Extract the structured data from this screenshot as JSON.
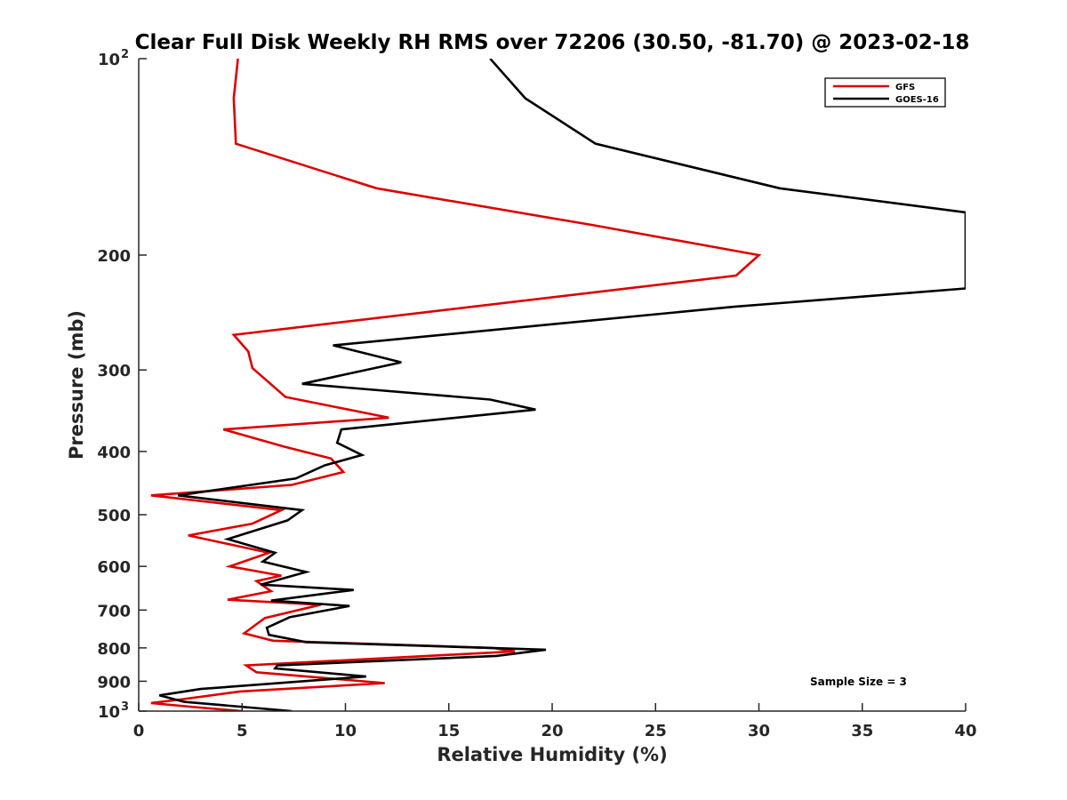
{
  "chart_data": {
    "type": "line",
    "title": "Clear Full Disk Weekly RH RMS over 72206 (30.50, -81.70) @ 2023-02-18",
    "xlabel": "Relative Humidity (%)",
    "ylabel": "Pressure (mb)",
    "xlim": [
      0,
      40
    ],
    "ylim": [
      100,
      1000
    ],
    "y_scale": "log",
    "y_reversed": true,
    "x_ticks": [
      "0",
      "5",
      "10",
      "15",
      "20",
      "25",
      "30",
      "35",
      "40"
    ],
    "y_ticks": [
      {
        "value": 100,
        "base": "10",
        "exp": "2"
      },
      {
        "value": 200,
        "label": "200"
      },
      {
        "value": 300,
        "label": "300"
      },
      {
        "value": 400,
        "label": "400"
      },
      {
        "value": 500,
        "label": "500"
      },
      {
        "value": 600,
        "label": "600"
      },
      {
        "value": 700,
        "label": "700"
      },
      {
        "value": 800,
        "label": "800"
      },
      {
        "value": 900,
        "label": "900"
      },
      {
        "value": 1000,
        "base": "10",
        "exp": "3"
      }
    ],
    "grid": false,
    "legend_position": "top-right",
    "series": [
      {
        "name": "GFS",
        "color": "#dd0000",
        "points": [
          [
            4.8,
            100
          ],
          [
            4.6,
            115
          ],
          [
            4.7,
            135
          ],
          [
            11.5,
            158
          ],
          [
            22.0,
            180
          ],
          [
            30.0,
            200
          ],
          [
            28.9,
            215
          ],
          [
            4.6,
            265
          ],
          [
            5.3,
            281
          ],
          [
            5.5,
            298
          ],
          [
            7.1,
            330
          ],
          [
            12.1,
            355
          ],
          [
            4.1,
            370
          ],
          [
            7.0,
            393
          ],
          [
            9.3,
            410
          ],
          [
            9.9,
            430
          ],
          [
            7.4,
            450
          ],
          [
            0.6,
            467
          ],
          [
            6.9,
            492
          ],
          [
            5.5,
            516
          ],
          [
            2.4,
            538
          ],
          [
            6.3,
            572
          ],
          [
            4.4,
            600
          ],
          [
            6.9,
            620
          ],
          [
            5.7,
            632
          ],
          [
            6.4,
            655
          ],
          [
            4.3,
            675
          ],
          [
            8.8,
            687
          ],
          [
            6.1,
            720
          ],
          [
            5.1,
            760
          ],
          [
            6.5,
            780
          ],
          [
            17.1,
            800
          ],
          [
            18.2,
            810
          ],
          [
            5.2,
            851
          ],
          [
            5.7,
            872
          ],
          [
            11.9,
            906
          ],
          [
            4.9,
            933
          ],
          [
            2.0,
            960
          ],
          [
            0.6,
            972
          ],
          [
            2.7,
            986
          ],
          [
            5.0,
            1000
          ]
        ]
      },
      {
        "name": "GOES-16",
        "color": "#000000",
        "points": [
          [
            17.0,
            100
          ],
          [
            18.7,
            115
          ],
          [
            22.1,
            135
          ],
          [
            31.0,
            158
          ],
          [
            40.0,
            172
          ],
          [
            40.0,
            225
          ],
          [
            28.8,
            240
          ],
          [
            9.4,
            275
          ],
          [
            12.7,
            292
          ],
          [
            7.9,
            315
          ],
          [
            17.0,
            333
          ],
          [
            19.2,
            345
          ],
          [
            9.8,
            370
          ],
          [
            9.6,
            388
          ],
          [
            10.8,
            405
          ],
          [
            9.0,
            420
          ],
          [
            7.6,
            440
          ],
          [
            1.9,
            467
          ],
          [
            7.9,
            492
          ],
          [
            7.2,
            510
          ],
          [
            4.3,
            545
          ],
          [
            6.6,
            572
          ],
          [
            6.0,
            590
          ],
          [
            8.1,
            612
          ],
          [
            5.9,
            640
          ],
          [
            10.4,
            652
          ],
          [
            6.4,
            677
          ],
          [
            10.2,
            690
          ],
          [
            7.3,
            718
          ],
          [
            6.2,
            745
          ],
          [
            6.3,
            764
          ],
          [
            8.1,
            784
          ],
          [
            19.7,
            805
          ],
          [
            17.3,
            823
          ],
          [
            6.7,
            851
          ],
          [
            6.6,
            860
          ],
          [
            11.0,
            885
          ],
          [
            3.0,
            925
          ],
          [
            1.0,
            946
          ],
          [
            2.2,
            968
          ],
          [
            7.4,
            1000
          ]
        ]
      }
    ],
    "annotations": [
      "Sample Size = 3"
    ]
  }
}
